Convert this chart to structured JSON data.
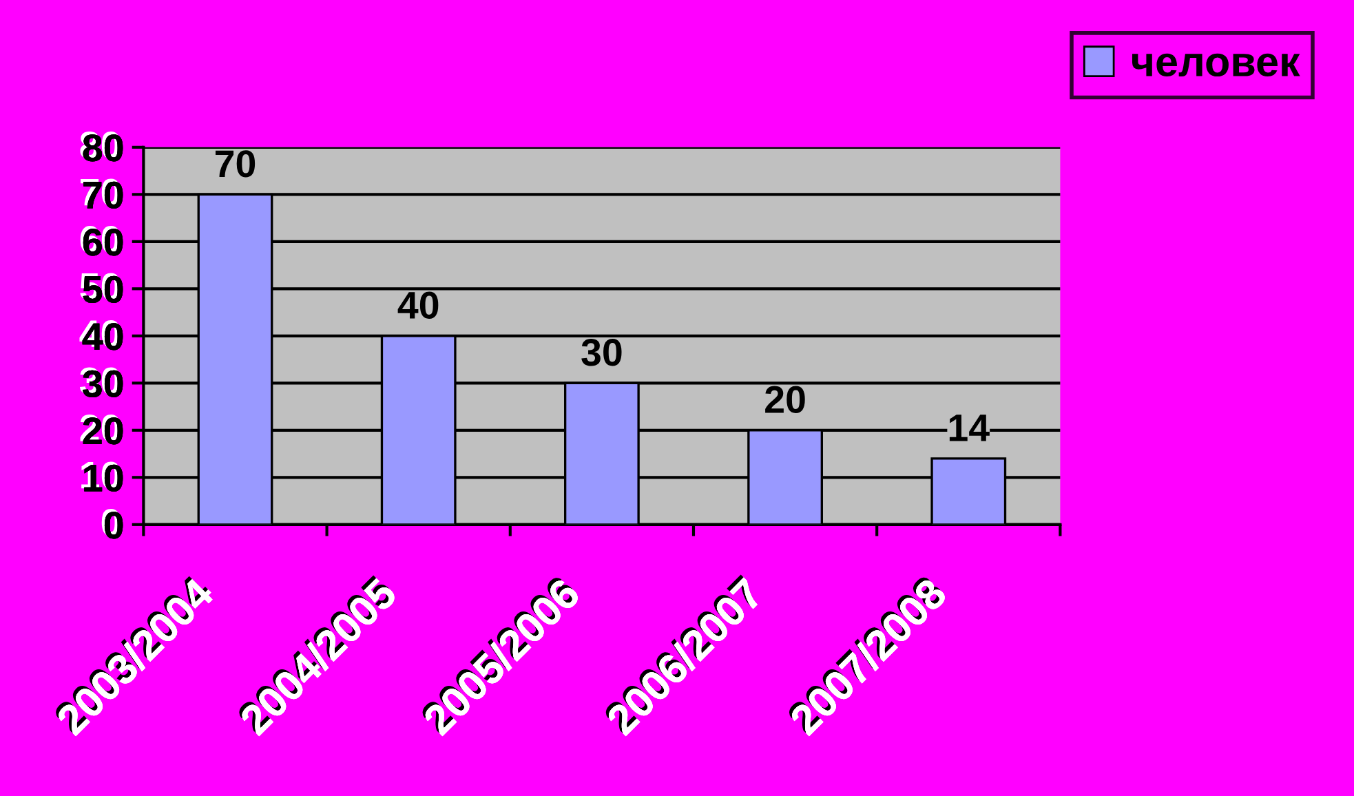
{
  "chart_data": {
    "type": "bar",
    "categories": [
      "2003/2004",
      "2004/2005",
      "2005/2006",
      "2006/2007",
      "2007/2008"
    ],
    "series": [
      {
        "name": "человек",
        "color": "#9999ff",
        "values": [
          70,
          40,
          30,
          20,
          14
        ]
      }
    ],
    "ylim": [
      0,
      80
    ],
    "yticks": [
      0,
      10,
      20,
      30,
      40,
      50,
      60,
      70,
      80
    ],
    "grid": "y",
    "legend": "top right",
    "data_labels": true
  }
}
